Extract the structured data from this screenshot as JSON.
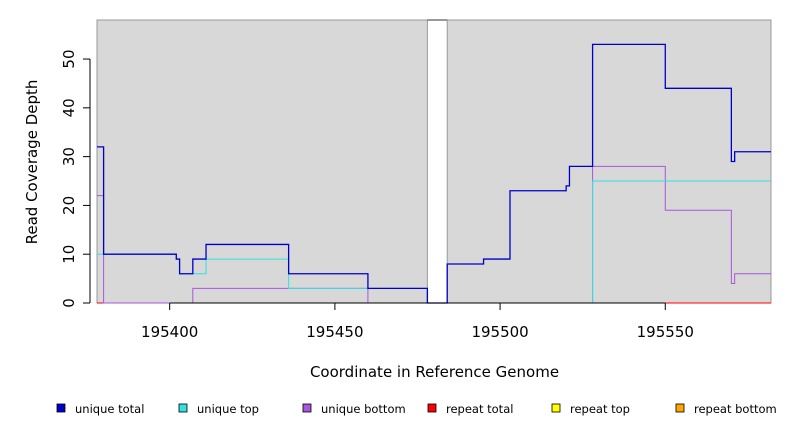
{
  "chart_data": {
    "type": "line",
    "step": true,
    "xlabel": "Coordinate in Reference Genome",
    "ylabel": "Read Coverage Depth",
    "xlim": [
      195378,
      195582
    ],
    "ylim": [
      0,
      58
    ],
    "x_ticks": [
      195400,
      195450,
      195500,
      195550
    ],
    "x_tick_labels": [
      "195400",
      "195450",
      "195500",
      "195550"
    ],
    "y_ticks": [
      0,
      10,
      20,
      30,
      40,
      50
    ],
    "y_tick_labels": [
      "0",
      "10",
      "20",
      "30",
      "40",
      "50"
    ],
    "gap": [
      195478,
      195484
    ],
    "colors": {
      "background": "#d8d8d8",
      "unique_total": "#0000cc",
      "unique_top": "#33e0e0",
      "unique_bottom": "#a855e0",
      "repeat_total": "#ff0000",
      "repeat_top": "#ffff00",
      "repeat_bottom": "#ffa500"
    },
    "series": [
      {
        "name": "unique total",
        "color": "#0000cc",
        "x": [
          195378,
          195380,
          195402,
          195403,
          195407,
          195411,
          195436,
          195460,
          195478,
          195484,
          195495,
          195503,
          195520,
          195521,
          195528,
          195550,
          195570,
          195571,
          195582
        ],
        "y": [
          32,
          10,
          9,
          6,
          9,
          12,
          6,
          3,
          0,
          8,
          9,
          23,
          24,
          28,
          53,
          44,
          29,
          31,
          31
        ]
      },
      {
        "name": "unique top",
        "color": "#33e0e0",
        "x": [
          195378,
          195380,
          195402,
          195403,
          195411,
          195436,
          195478,
          195484,
          195528,
          195582
        ],
        "y": [
          10,
          10,
          9,
          6,
          9,
          3,
          0,
          0,
          25,
          25
        ]
      },
      {
        "name": "unique bottom",
        "color": "#a855e0",
        "x": [
          195378,
          195380,
          195407,
          195460,
          195478,
          195484,
          195528,
          195550,
          195570,
          195571,
          195582
        ],
        "y": [
          22,
          0,
          3,
          0,
          0,
          0,
          28,
          19,
          4,
          6,
          6
        ]
      },
      {
        "name": "repeat total",
        "color": "#ff0000",
        "x": [
          195378,
          195582
        ],
        "y": [
          0,
          0
        ]
      },
      {
        "name": "repeat top",
        "color": "#ffff00",
        "x": [
          195378,
          195582
        ],
        "y": [
          0,
          0
        ]
      },
      {
        "name": "repeat bottom",
        "color": "#ffa500",
        "x": [
          195378,
          195582
        ],
        "y": [
          0,
          0
        ]
      }
    ],
    "legend": {
      "placement": "bottom",
      "entries": [
        "unique total",
        "unique top",
        "unique bottom",
        "repeat total",
        "repeat top",
        "repeat bottom"
      ]
    }
  }
}
